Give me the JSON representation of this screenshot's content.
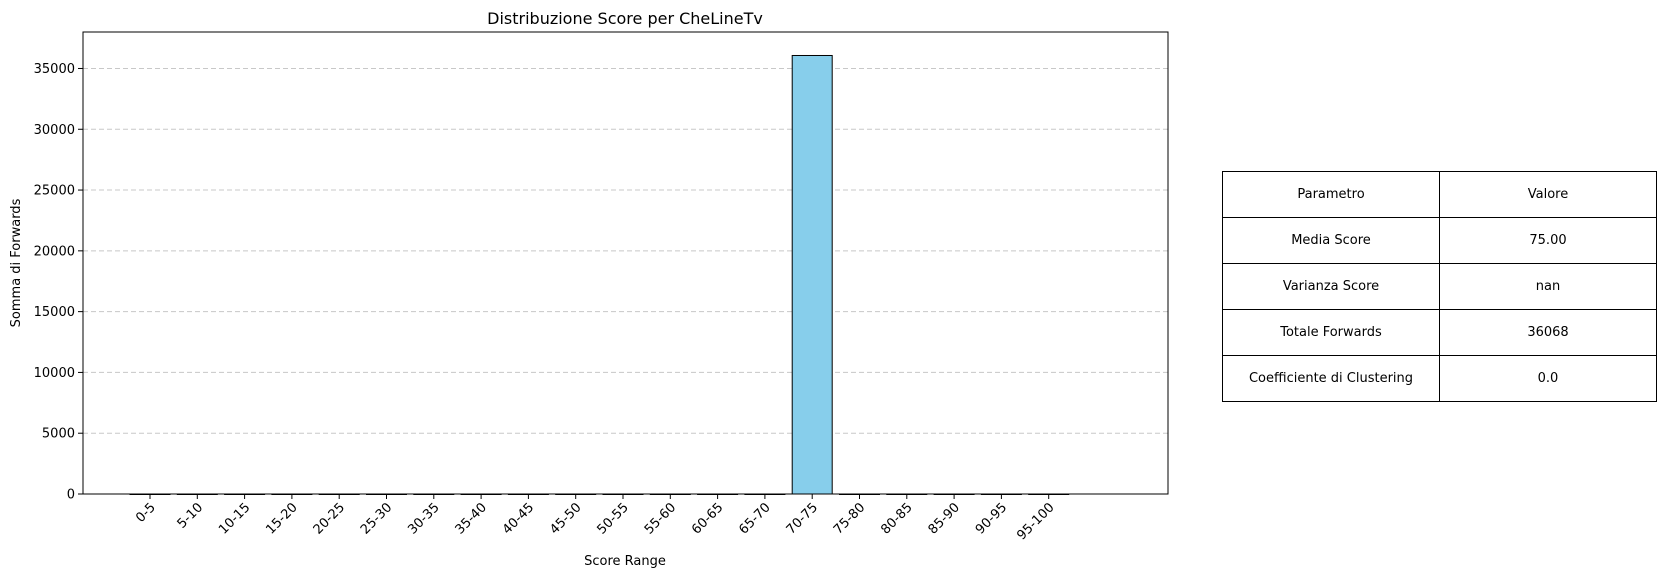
{
  "chart_data": {
    "type": "bar",
    "title": "Distribuzione Score per CheLineTv",
    "xlabel": "Score Range",
    "ylabel": "Somma di Forwards",
    "categories": [
      "0-5",
      "5-10",
      "10-15",
      "15-20",
      "20-25",
      "25-30",
      "30-35",
      "35-40",
      "40-45",
      "45-50",
      "50-55",
      "55-60",
      "60-65",
      "65-70",
      "70-75",
      "75-80",
      "80-85",
      "85-90",
      "90-95",
      "95-100"
    ],
    "values": [
      0,
      0,
      0,
      0,
      0,
      0,
      0,
      0,
      0,
      0,
      0,
      0,
      0,
      0,
      36068,
      0,
      0,
      0,
      0,
      0
    ],
    "ylim": [
      0,
      38000
    ],
    "yticks": [
      0,
      5000,
      10000,
      15000,
      20000,
      25000,
      30000,
      35000
    ],
    "grid": "horizontal dashed",
    "bar_color": "#87ceeb",
    "bar_edge_color": "#000000",
    "grid_color": "#c8c8c8"
  },
  "table": {
    "header": [
      "Parametro",
      "Valore"
    ],
    "rows": [
      [
        "Media Score",
        "75.00"
      ],
      [
        "Varianza Score",
        "nan"
      ],
      [
        "Totale Forwards",
        "36068"
      ],
      [
        "Coefficiente di Clustering",
        "0.0"
      ]
    ]
  }
}
